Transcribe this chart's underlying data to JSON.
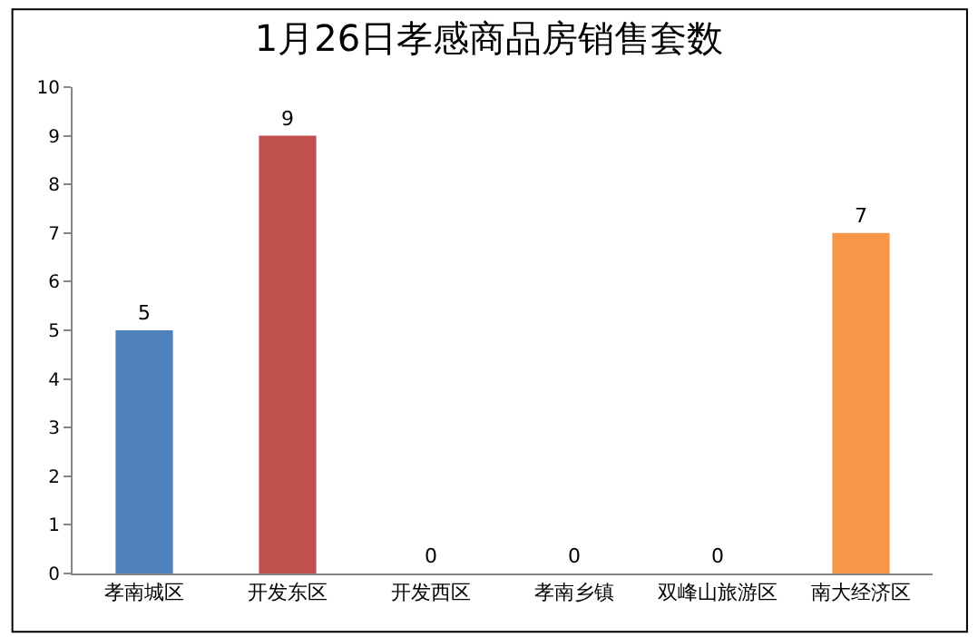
{
  "chart_data": {
    "type": "bar",
    "title": "1月26日孝感商品房销售套数",
    "categories": [
      "孝南城区",
      "开发东区",
      "开发西区",
      "孝南乡镇",
      "双峰山旅游区",
      "南大经济区"
    ],
    "values": [
      5,
      9,
      0,
      0,
      0,
      7
    ],
    "colors": [
      "#4f81bd",
      "#c0504d",
      "#9bbb59",
      "#8064a2",
      "#4bacc6",
      "#f79646"
    ],
    "ylim": [
      0,
      10
    ],
    "yticks": [
      0,
      1,
      2,
      3,
      4,
      5,
      6,
      7,
      8,
      9,
      10
    ],
    "data_labels": true,
    "legend": false
  }
}
